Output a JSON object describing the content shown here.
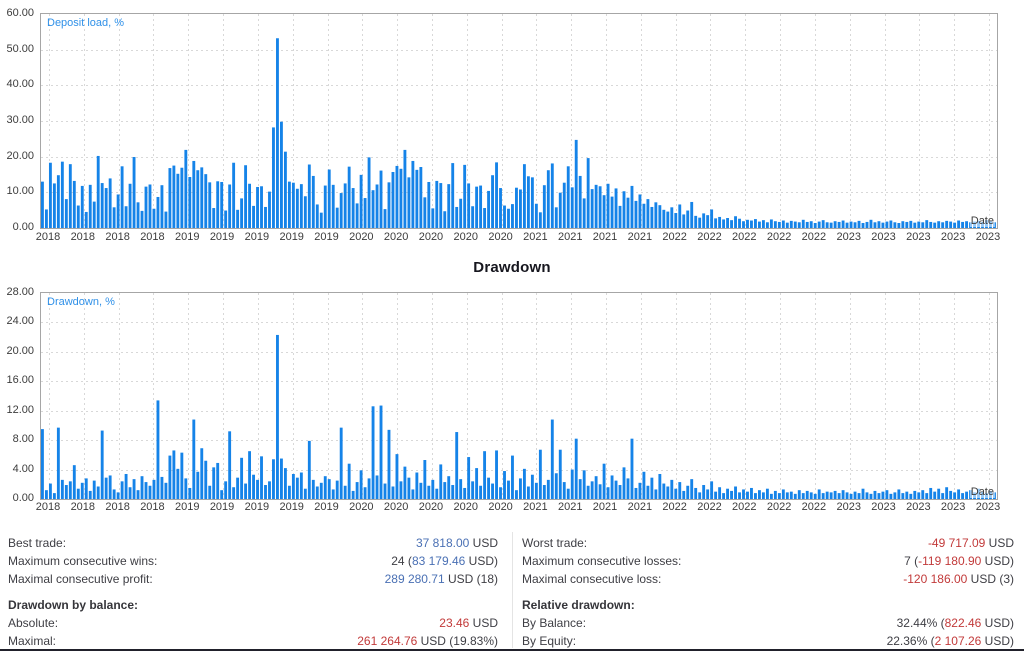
{
  "chart_data": [
    {
      "type": "bar",
      "series_label": "Deposit load, %",
      "corner_label": "Date",
      "bar_color": "#1583e8",
      "grid": true,
      "ylim": [
        0,
        60
      ],
      "y_ticks": [
        "60.00",
        "50.00",
        "40.00",
        "30.00",
        "20.00",
        "10.00",
        "0.00"
      ],
      "x_labels": [
        "2018",
        "2018",
        "2018",
        "2018",
        "2019",
        "2019",
        "2019",
        "2019",
        "2019",
        "2020",
        "2020",
        "2020",
        "2020",
        "2020",
        "2021",
        "2021",
        "2021",
        "2021",
        "2022",
        "2022",
        "2022",
        "2022",
        "2022",
        "2023",
        "2023",
        "2023",
        "2023",
        "2023"
      ],
      "values": [
        13.0,
        5.2,
        18.3,
        12.5,
        14.8,
        18.6,
        8.1,
        17.9,
        13.2,
        6.3,
        11.8,
        4.5,
        12.1,
        7.4,
        20.2,
        12.6,
        11.2,
        13.9,
        5.8,
        9.4,
        17.3,
        6.1,
        12.4,
        19.9,
        7.2,
        4.8,
        11.6,
        12.2,
        5.4,
        8.7,
        12.0,
        4.6,
        16.8,
        17.5,
        15.2,
        16.9,
        21.9,
        14.3,
        18.8,
        16.2,
        17.0,
        15.1,
        12.8,
        5.6,
        13.1,
        12.9,
        4.9,
        12.2,
        18.3,
        5.1,
        8.3,
        17.6,
        12.4,
        6.2,
        11.5,
        11.7,
        5.9,
        10.2,
        28.2,
        53.2,
        29.8,
        21.4,
        13.0,
        12.7,
        11.0,
        12.3,
        8.9,
        17.8,
        14.6,
        6.6,
        4.3,
        11.9,
        16.4,
        12.1,
        5.7,
        9.8,
        12.5,
        17.2,
        11.2,
        6.9,
        14.9,
        8.4,
        19.8,
        10.6,
        12.2,
        16.1,
        5.3,
        12.8,
        15.7,
        17.4,
        16.6,
        21.9,
        14.2,
        18.8,
        16.3,
        17.1,
        8.6,
        12.9,
        5.5,
        13.2,
        12.6,
        4.7,
        12.3,
        18.2,
        5.9,
        8.2,
        17.7,
        12.5,
        6.1,
        11.6,
        11.9,
        5.6,
        10.4,
        14.8,
        18.4,
        11.2,
        6.3,
        5.4,
        6.7,
        11.3,
        10.8,
        17.9,
        14.5,
        14.2,
        6.8,
        4.4,
        12.0,
        16.2,
        18.1,
        5.8,
        9.9,
        12.7,
        17.3,
        11.4,
        24.7,
        14.6,
        8.3,
        19.6,
        10.9,
        12.1,
        11.7,
        9.2,
        12.4,
        8.8,
        11.1,
        6.2,
        10.3,
        8.5,
        11.8,
        7.6,
        9.4,
        6.8,
        8.1,
        5.9,
        7.2,
        6.4,
        5.1,
        4.6,
        5.8,
        4.2,
        6.6,
        3.8,
        4.9,
        7.3,
        3.4,
        2.9,
        4.1,
        3.6,
        5.2,
        2.7,
        3.1,
        2.4,
        2.8,
        2.2,
        3.3,
        2.6,
        1.9,
        2.3,
        2.1,
        2.5,
        1.8,
        2.2,
        1.6,
        2.4,
        1.9,
        1.7,
        2.1,
        1.5,
        2.0,
        1.8,
        1.6,
        2.3,
        1.7,
        1.9,
        1.4,
        1.8,
        2.2,
        1.6,
        1.5,
        1.9,
        1.7,
        2.1,
        1.5,
        1.8,
        1.6,
        2.0,
        1.4,
        1.7,
        2.3,
        1.6,
        1.9,
        1.5,
        1.8,
        2.1,
        1.6,
        1.4,
        1.9,
        1.7,
        2.0,
        1.5,
        1.8,
        1.6,
        2.2,
        1.7,
        1.5,
        1.9,
        1.6,
        2.0,
        1.8,
        1.5,
        2.1,
        1.7,
        1.9,
        1.6,
        1.8,
        2.0,
        1.7,
        2.2,
        1.9,
        1.6
      ]
    },
    {
      "type": "bar",
      "title": "Drawdown",
      "series_label": "Drawdown, %",
      "corner_label": "Date",
      "bar_color": "#1583e8",
      "grid": true,
      "ylim": [
        0,
        28
      ],
      "y_ticks": [
        "28.00",
        "24.00",
        "20.00",
        "16.00",
        "12.00",
        "8.00",
        "4.00",
        "0.00"
      ],
      "x_labels": [
        "2018",
        "2018",
        "2018",
        "2018",
        "2019",
        "2019",
        "2019",
        "2019",
        "2019",
        "2020",
        "2020",
        "2020",
        "2020",
        "2020",
        "2021",
        "2021",
        "2021",
        "2021",
        "2022",
        "2022",
        "2022",
        "2022",
        "2022",
        "2023",
        "2023",
        "2023",
        "2023",
        "2023"
      ],
      "values": [
        9.5,
        1.2,
        2.1,
        0.8,
        9.7,
        2.6,
        1.9,
        2.4,
        4.6,
        1.4,
        2.2,
        2.8,
        1.1,
        2.5,
        1.7,
        9.3,
        2.9,
        3.2,
        1.3,
        0.9,
        2.4,
        3.4,
        1.6,
        2.7,
        1.2,
        3.1,
        2.3,
        1.8,
        2.6,
        13.4,
        3.0,
        2.2,
        5.9,
        6.6,
        4.1,
        6.3,
        2.8,
        1.5,
        10.8,
        3.7,
        6.9,
        5.2,
        1.8,
        4.3,
        4.9,
        1.2,
        2.4,
        9.2,
        1.6,
        2.9,
        5.6,
        2.1,
        6.5,
        3.3,
        2.6,
        5.8,
        1.9,
        2.4,
        5.4,
        22.3,
        5.5,
        4.2,
        1.8,
        3.4,
        2.9,
        3.6,
        1.4,
        7.9,
        2.6,
        1.7,
        2.2,
        3.1,
        2.7,
        1.3,
        2.5,
        9.7,
        1.8,
        4.8,
        1.1,
        2.3,
        3.9,
        1.6,
        2.8,
        12.6,
        3.2,
        12.7,
        2.1,
        9.4,
        1.7,
        6.1,
        2.4,
        4.4,
        2.9,
        1.3,
        3.6,
        2.2,
        5.3,
        1.8,
        2.6,
        1.4,
        4.7,
        2.3,
        3.1,
        1.9,
        9.1,
        2.7,
        1.5,
        5.7,
        2.4,
        4.2,
        1.8,
        6.5,
        2.9,
        2.1,
        6.6,
        1.6,
        3.8,
        2.5,
        5.9,
        1.2,
        2.8,
        4.1,
        1.7,
        3.3,
        2.2,
        6.7,
        1.9,
        2.6,
        10.8,
        3.5,
        6.7,
        2.3,
        1.4,
        4.0,
        8.2,
        2.7,
        3.9,
        1.8,
        2.4,
        3.1,
        2.0,
        4.8,
        1.6,
        3.2,
        2.5,
        1.9,
        4.3,
        2.8,
        8.2,
        1.5,
        2.2,
        3.7,
        1.8,
        2.9,
        1.3,
        3.4,
        2.1,
        1.7,
        2.6,
        1.4,
        2.3,
        1.1,
        1.8,
        2.7,
        1.5,
        0.9,
        1.9,
        1.3,
        2.4,
        1.0,
        1.6,
        0.8,
        1.4,
        1.1,
        1.7,
        0.9,
        1.3,
        1.0,
        1.5,
        0.8,
        1.2,
        0.9,
        1.4,
        0.7,
        1.1,
        0.8,
        1.3,
        0.9,
        1.0,
        0.7,
        1.2,
        0.8,
        1.1,
        0.9,
        0.7,
        1.3,
        0.8,
        1.0,
        0.9,
        1.1,
        0.8,
        1.2,
        0.9,
        0.7,
        1.0,
        0.8,
        1.4,
        0.9,
        0.7,
        1.1,
        0.8,
        1.0,
        1.2,
        0.7,
        0.9,
        1.3,
        0.8,
        1.0,
        0.7,
        1.1,
        0.9,
        1.2,
        0.8,
        1.5,
        1.0,
        1.4,
        0.8,
        1.6,
        1.1,
        0.9,
        1.3,
        0.8,
        1.0,
        1.2,
        0.9,
        1.4,
        1.0,
        0.8,
        1.1,
        0.9
      ]
    }
  ],
  "stats": {
    "sections": [
      {
        "rows": [
          {
            "left": {
              "label": "Best trade:",
              "parts": [
                {
                  "t": "37 818.00",
                  "c": "blue"
                },
                {
                  "t": " USD",
                  "c": "plain"
                }
              ]
            },
            "right": {
              "label": "Worst trade:",
              "parts": [
                {
                  "t": "-49 717.09",
                  "c": "red"
                },
                {
                  "t": " USD",
                  "c": "plain"
                }
              ]
            }
          },
          {
            "left": {
              "label": "Maximum consecutive wins:",
              "parts": [
                {
                  "t": "24 (",
                  "c": "plain"
                },
                {
                  "t": "83 179.46",
                  "c": "blue"
                },
                {
                  "t": " USD)",
                  "c": "plain"
                }
              ]
            },
            "right": {
              "label": "Maximum consecutive losses:",
              "parts": [
                {
                  "t": "7 (",
                  "c": "plain"
                },
                {
                  "t": "-119 180.90",
                  "c": "red"
                },
                {
                  "t": " USD)",
                  "c": "plain"
                }
              ]
            }
          },
          {
            "left": {
              "label": "Maximal consecutive profit:",
              "parts": [
                {
                  "t": "289 280.71",
                  "c": "blue"
                },
                {
                  "t": " USD (18)",
                  "c": "plain"
                }
              ]
            },
            "right": {
              "label": "Maximal consecutive loss:",
              "parts": [
                {
                  "t": "-120 186.00",
                  "c": "red"
                },
                {
                  "t": " USD (3)",
                  "c": "plain"
                }
              ]
            }
          }
        ]
      },
      {
        "headers": {
          "left": "Drawdown by balance:",
          "right": "Relative drawdown:"
        },
        "rows": [
          {
            "left": {
              "label": "Absolute:",
              "parts": [
                {
                  "t": "23.46",
                  "c": "red"
                },
                {
                  "t": " USD",
                  "c": "plain"
                }
              ]
            },
            "right": {
              "label": "By Balance:",
              "parts": [
                {
                  "t": "32.44% (",
                  "c": "plain"
                },
                {
                  "t": "822.46",
                  "c": "red"
                },
                {
                  "t": " USD)",
                  "c": "plain"
                }
              ]
            }
          },
          {
            "left": {
              "label": "Maximal:",
              "parts": [
                {
                  "t": "261 264.76",
                  "c": "red"
                },
                {
                  "t": " USD (19.83%)",
                  "c": "plain"
                }
              ]
            },
            "right": {
              "label": "By Equity:",
              "parts": [
                {
                  "t": "22.36% (",
                  "c": "plain"
                },
                {
                  "t": "2 107.26",
                  "c": "red"
                },
                {
                  "t": " USD)",
                  "c": "plain"
                }
              ]
            }
          }
        ]
      }
    ]
  }
}
